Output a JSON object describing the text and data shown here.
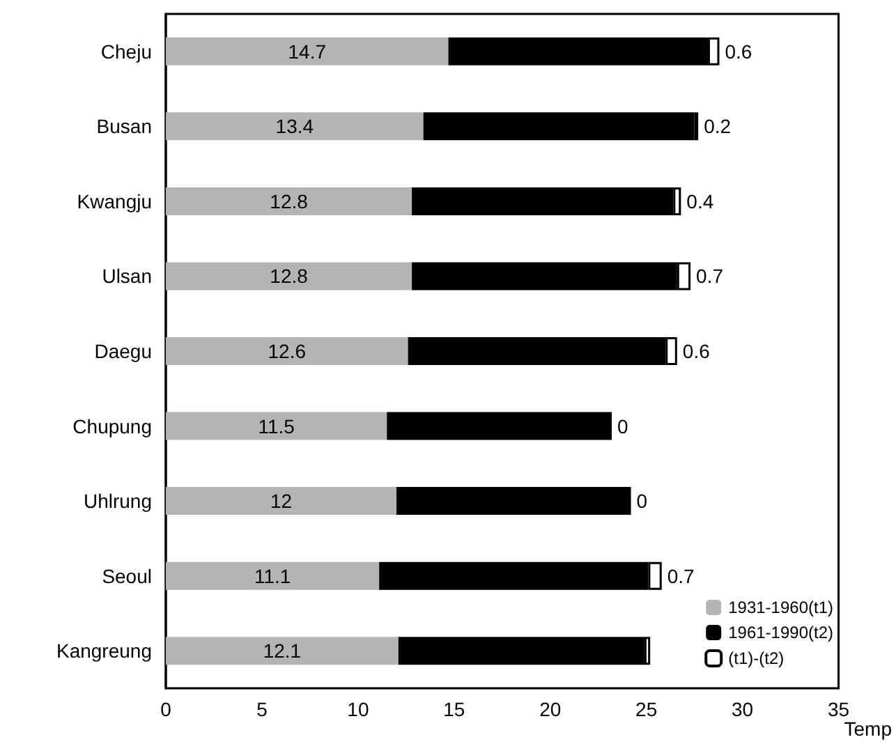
{
  "chart_data": {
    "type": "bar",
    "orientation": "horizontal",
    "stacked": true,
    "xlabel": "Temp",
    "categories": [
      "Cheju",
      "Busan",
      "Kwangju",
      "Ulsan",
      "Daegu",
      "Chupung",
      "Uhlrung",
      "Seoul",
      "Kangreung"
    ],
    "series": [
      {
        "name": "1931-1960(t1)",
        "color": "#b4b4b4",
        "values": [
          14.7,
          13.4,
          12.8,
          12.8,
          12.6,
          11.5,
          12,
          11.1,
          12.1
        ],
        "value_labels": [
          "14.7",
          "13.4",
          "12.8",
          "12.8",
          "12.6",
          "11.5",
          "12",
          "11.1",
          "12.1"
        ]
      },
      {
        "name": "1961-1990(t2)",
        "color": "#000000",
        "values": [
          13.5,
          14.1,
          13.6,
          13.8,
          13.4,
          11.7,
          12.2,
          14.0,
          12.8
        ]
      },
      {
        "name": "(t1)-(t2)",
        "color": "#ffffff",
        "values": [
          0.6,
          0.2,
          0.4,
          0.7,
          0.6,
          0,
          0,
          0.7,
          0.3
        ],
        "value_labels": [
          "0.6",
          "0.2",
          "0.4",
          "0.7",
          "0.6",
          "0",
          "0",
          "0.7",
          null
        ]
      }
    ],
    "xlim": [
      0,
      35
    ],
    "xticks": [
      0,
      5,
      10,
      15,
      20,
      25,
      30,
      35
    ],
    "grid": false,
    "legend": "bottom right"
  }
}
